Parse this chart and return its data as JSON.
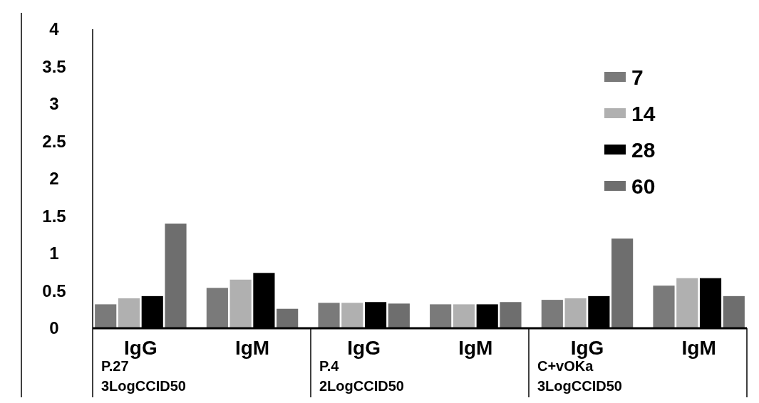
{
  "chart_data": {
    "type": "bar",
    "categories": [
      "IgG",
      "IgM",
      "IgG",
      "IgM",
      "IgG",
      "IgM"
    ],
    "series": [
      {
        "name": "7",
        "color": "#7a7a7a",
        "values": [
          0.32,
          0.54,
          0.34,
          0.32,
          0.38,
          0.57
        ]
      },
      {
        "name": "14",
        "color": "#b0b0b0",
        "values": [
          0.4,
          0.65,
          0.34,
          0.32,
          0.4,
          0.67
        ]
      },
      {
        "name": "28",
        "color": "#000000",
        "values": [
          0.43,
          0.74,
          0.35,
          0.32,
          0.43,
          0.67
        ]
      },
      {
        "name": "60",
        "color": "#6e6e6e",
        "values": [
          1.4,
          0.26,
          0.33,
          0.35,
          1.2,
          0.43
        ]
      }
    ],
    "ylim": [
      0,
      4
    ],
    "yticks": [
      0,
      0.5,
      1,
      1.5,
      2,
      2.5,
      3,
      3.5,
      4
    ],
    "annotations": [
      "P.27",
      "3LogCCID50",
      "P.4",
      "2LogCCID50",
      "C+vOKa",
      "3LogCCID50"
    ],
    "legend": "top right",
    "grid": false
  }
}
